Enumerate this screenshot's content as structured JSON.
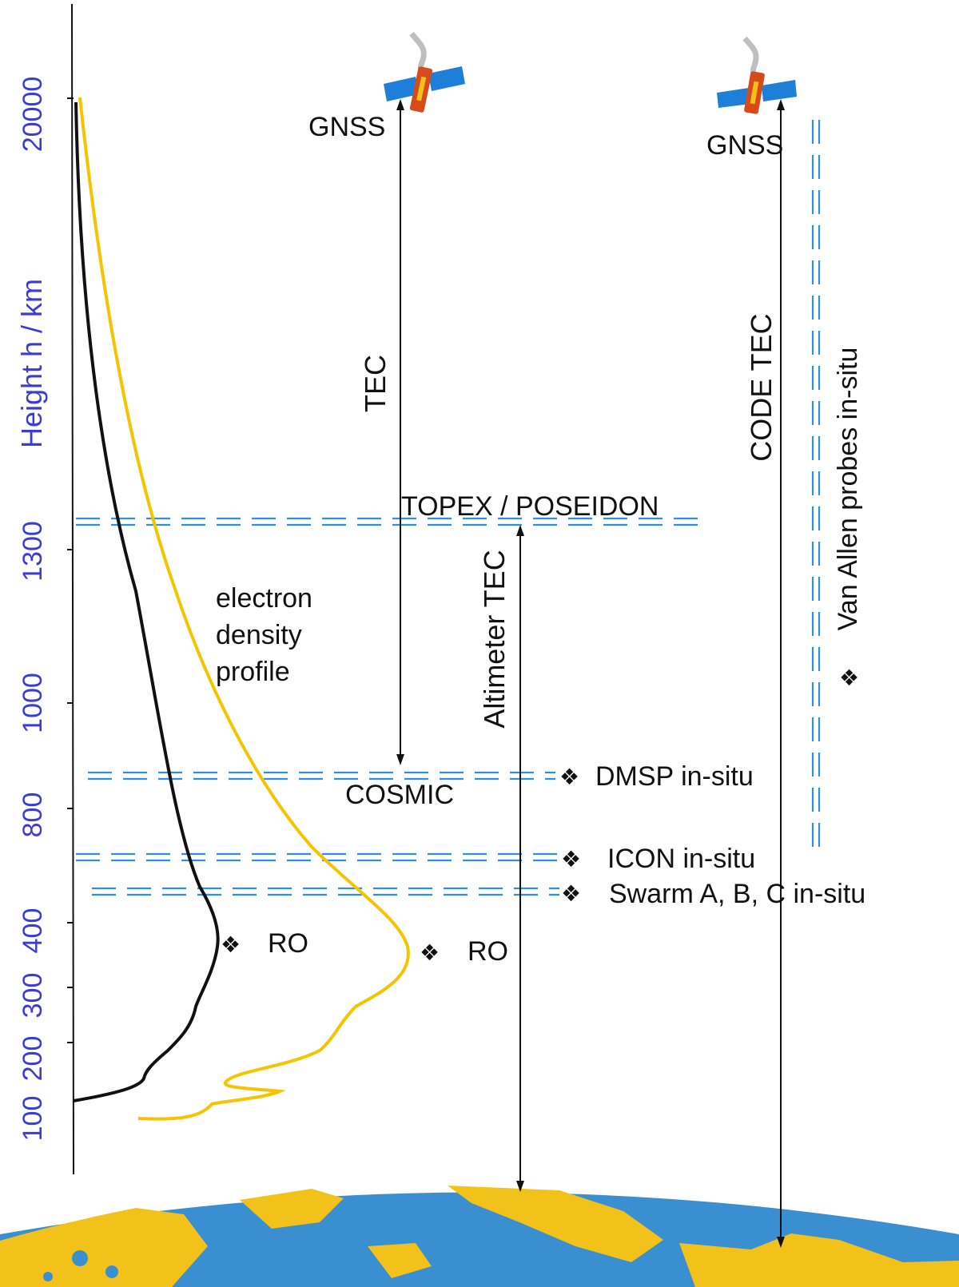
{
  "axis": {
    "title": "Height  h / km",
    "ticks": [
      "100",
      "200",
      "300",
      "400",
      "800",
      "1000",
      "1300",
      "20000"
    ]
  },
  "labels": {
    "gnss_left": "GNSS",
    "gnss_right": "GNSS",
    "tec": "TEC",
    "code_tec": "CODE TEC",
    "topex": "TOPEX / POSEIDON",
    "altimeter_tec": "Altimeter TEC",
    "profile_line1": "electron",
    "profile_line2": "density",
    "profile_line3": "profile",
    "cosmic": "COSMIC",
    "dmsp": "DMSP in-situ",
    "icon": "ICON in-situ",
    "swarm": "Swarm A, B, C in-situ",
    "ro_black": "RO",
    "ro_yellow": "RO",
    "van_allen": "Van Allen probes in-situ"
  },
  "bullet": "❖",
  "colors": {
    "axis_text": "#3b3bd6",
    "profile_black": "#111111",
    "profile_yellow": "#f5c400",
    "dash_blue": "#2f8fdc",
    "ocean": "#3a8fd0",
    "land": "#f2c21a",
    "panel_blue": "#1e7fd8"
  }
}
